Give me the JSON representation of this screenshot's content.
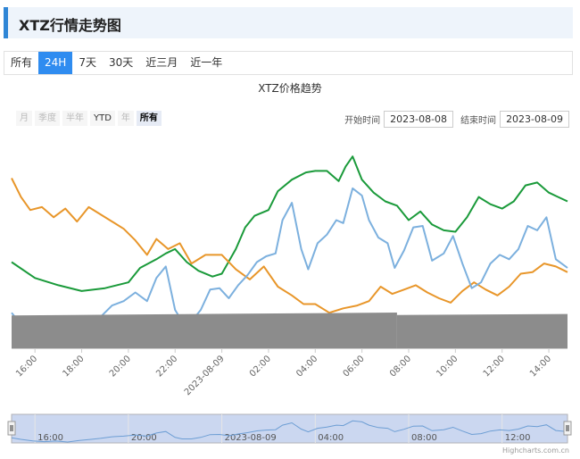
{
  "header": {
    "title": "XTZ行情走势图"
  },
  "tabs": [
    {
      "label": "所有",
      "active": false
    },
    {
      "label": "24H",
      "active": true
    },
    {
      "label": "7天",
      "active": false
    },
    {
      "label": "30天",
      "active": false
    },
    {
      "label": "近三月",
      "active": false
    },
    {
      "label": "近一年",
      "active": false
    }
  ],
  "range_selector": {
    "buttons": [
      {
        "label": "月",
        "state": "disabled"
      },
      {
        "label": "季度",
        "state": "disabled"
      },
      {
        "label": "半年",
        "state": "disabled"
      },
      {
        "label": "YTD",
        "state": "enabled"
      },
      {
        "label": "年",
        "state": "disabled"
      },
      {
        "label": "所有",
        "state": "active"
      }
    ],
    "start_label": "开始时间",
    "start_value": "2023-08-08",
    "end_label": "结束时间",
    "end_value": "2023-08-09"
  },
  "credit": "Highcharts.com.cn",
  "chart_data": {
    "type": "line",
    "title": "XTZ价格趋势",
    "x_start_hour": 15.0,
    "x_end_hour": 38.8,
    "x_tick_labels": [
      "16:00",
      "18:00",
      "20:00",
      "22:00",
      "2023-08-09",
      "02:00",
      "04:00",
      "06:00",
      "08:00",
      "10:00",
      "12:00",
      "14:00"
    ],
    "navigator_tick_labels": [
      "16:00",
      "20:00",
      "2023-08-09",
      "04:00",
      "08:00",
      "12:00"
    ],
    "colors": {
      "green": "#1a9a3a",
      "orange": "#e8962a",
      "blue": "#7cb0de",
      "volume": "#8c8c8c",
      "navigator_fill": "#c5d3ee"
    },
    "series": [
      {
        "key": "green",
        "points": [
          [
            15.0,
            0.75
          ],
          [
            16.0,
            0.86
          ],
          [
            17.0,
            0.91
          ],
          [
            18.0,
            0.95
          ],
          [
            19.0,
            0.93
          ],
          [
            20.0,
            0.89
          ],
          [
            20.5,
            0.79
          ],
          [
            21.2,
            0.73
          ],
          [
            21.6,
            0.69
          ],
          [
            22.0,
            0.66
          ],
          [
            22.5,
            0.75
          ],
          [
            23.0,
            0.81
          ],
          [
            23.6,
            0.85
          ],
          [
            24.0,
            0.83
          ],
          [
            24.6,
            0.66
          ],
          [
            25.0,
            0.51
          ],
          [
            25.4,
            0.43
          ],
          [
            26.0,
            0.39
          ],
          [
            26.4,
            0.26
          ],
          [
            27.0,
            0.18
          ],
          [
            27.6,
            0.13
          ],
          [
            28.0,
            0.12
          ],
          [
            28.5,
            0.12
          ],
          [
            29.0,
            0.19
          ],
          [
            29.3,
            0.09
          ],
          [
            29.6,
            0.02
          ],
          [
            30.0,
            0.18
          ],
          [
            30.5,
            0.27
          ],
          [
            31.0,
            0.33
          ],
          [
            31.5,
            0.36
          ],
          [
            32.0,
            0.46
          ],
          [
            32.5,
            0.4
          ],
          [
            33.0,
            0.49
          ],
          [
            33.5,
            0.53
          ],
          [
            34.0,
            0.54
          ],
          [
            34.5,
            0.44
          ],
          [
            35.0,
            0.3
          ],
          [
            35.5,
            0.35
          ],
          [
            36.0,
            0.38
          ],
          [
            36.5,
            0.33
          ],
          [
            37.0,
            0.22
          ],
          [
            37.5,
            0.2
          ],
          [
            38.0,
            0.27
          ],
          [
            38.4,
            0.3
          ],
          [
            38.8,
            0.33
          ]
        ]
      },
      {
        "key": "orange",
        "points": [
          [
            15.0,
            0.17
          ],
          [
            15.4,
            0.3
          ],
          [
            15.8,
            0.39
          ],
          [
            16.3,
            0.37
          ],
          [
            16.8,
            0.44
          ],
          [
            17.3,
            0.38
          ],
          [
            17.8,
            0.47
          ],
          [
            18.3,
            0.37
          ],
          [
            18.8,
            0.42
          ],
          [
            19.3,
            0.47
          ],
          [
            19.8,
            0.52
          ],
          [
            20.3,
            0.6
          ],
          [
            20.8,
            0.7
          ],
          [
            21.2,
            0.59
          ],
          [
            21.7,
            0.66
          ],
          [
            22.2,
            0.62
          ],
          [
            22.7,
            0.76
          ],
          [
            23.3,
            0.7
          ],
          [
            24.0,
            0.7
          ],
          [
            24.6,
            0.8
          ],
          [
            25.2,
            0.87
          ],
          [
            25.8,
            0.78
          ],
          [
            26.4,
            0.92
          ],
          [
            27.0,
            0.98
          ],
          [
            27.5,
            1.04
          ],
          [
            28.0,
            1.04
          ],
          [
            28.6,
            1.1
          ],
          [
            29.2,
            1.07
          ],
          [
            29.8,
            1.05
          ],
          [
            30.3,
            1.02
          ],
          [
            30.8,
            0.92
          ],
          [
            31.3,
            0.97
          ],
          [
            31.8,
            0.94
          ],
          [
            32.3,
            0.91
          ],
          [
            32.8,
            0.96
          ],
          [
            33.3,
            1.0
          ],
          [
            33.8,
            1.03
          ],
          [
            34.3,
            0.95
          ],
          [
            34.8,
            0.89
          ],
          [
            35.3,
            0.94
          ],
          [
            35.8,
            0.98
          ],
          [
            36.3,
            0.92
          ],
          [
            36.8,
            0.83
          ],
          [
            37.3,
            0.82
          ],
          [
            37.8,
            0.76
          ],
          [
            38.3,
            0.78
          ],
          [
            38.8,
            0.82
          ]
        ]
      },
      {
        "key": "blue",
        "points": [
          [
            15.0,
            1.1
          ],
          [
            15.4,
            1.18
          ],
          [
            15.9,
            1.26
          ],
          [
            16.4,
            1.3
          ],
          [
            16.9,
            1.27
          ],
          [
            17.4,
            1.32
          ],
          [
            17.9,
            1.24
          ],
          [
            18.4,
            1.18
          ],
          [
            18.8,
            1.13
          ],
          [
            19.3,
            1.05
          ],
          [
            19.8,
            1.02
          ],
          [
            20.3,
            0.96
          ],
          [
            20.8,
            1.02
          ],
          [
            21.2,
            0.86
          ],
          [
            21.6,
            0.78
          ],
          [
            22.0,
            1.08
          ],
          [
            22.3,
            1.16
          ],
          [
            22.7,
            1.16
          ],
          [
            23.1,
            1.08
          ],
          [
            23.5,
            0.94
          ],
          [
            23.9,
            0.93
          ],
          [
            24.3,
            1.0
          ],
          [
            24.7,
            0.91
          ],
          [
            25.1,
            0.84
          ],
          [
            25.5,
            0.75
          ],
          [
            25.9,
            0.71
          ],
          [
            26.3,
            0.69
          ],
          [
            26.6,
            0.46
          ],
          [
            27.0,
            0.34
          ],
          [
            27.4,
            0.66
          ],
          [
            27.7,
            0.8
          ],
          [
            28.1,
            0.62
          ],
          [
            28.5,
            0.56
          ],
          [
            28.9,
            0.46
          ],
          [
            29.2,
            0.48
          ],
          [
            29.6,
            0.24
          ],
          [
            30.0,
            0.29
          ],
          [
            30.3,
            0.46
          ],
          [
            30.7,
            0.58
          ],
          [
            31.1,
            0.62
          ],
          [
            31.4,
            0.79
          ],
          [
            31.8,
            0.67
          ],
          [
            32.2,
            0.51
          ],
          [
            32.6,
            0.5
          ],
          [
            33.0,
            0.74
          ],
          [
            33.5,
            0.69
          ],
          [
            33.9,
            0.57
          ],
          [
            34.3,
            0.76
          ],
          [
            34.7,
            0.93
          ],
          [
            35.1,
            0.89
          ],
          [
            35.5,
            0.76
          ],
          [
            35.9,
            0.7
          ],
          [
            36.3,
            0.73
          ],
          [
            36.7,
            0.66
          ],
          [
            37.1,
            0.5
          ],
          [
            37.5,
            0.53
          ],
          [
            37.9,
            0.44
          ],
          [
            38.3,
            0.73
          ],
          [
            38.8,
            0.79
          ]
        ]
      }
    ],
    "volume": {
      "segments": [
        {
          "x0": 15.0,
          "x1": 31.5,
          "level_start": 0.92,
          "level_end": 1.0
        },
        {
          "x0": 31.5,
          "x1": 38.8,
          "level_start": 0.93,
          "level_end": 0.96
        }
      ]
    }
  }
}
